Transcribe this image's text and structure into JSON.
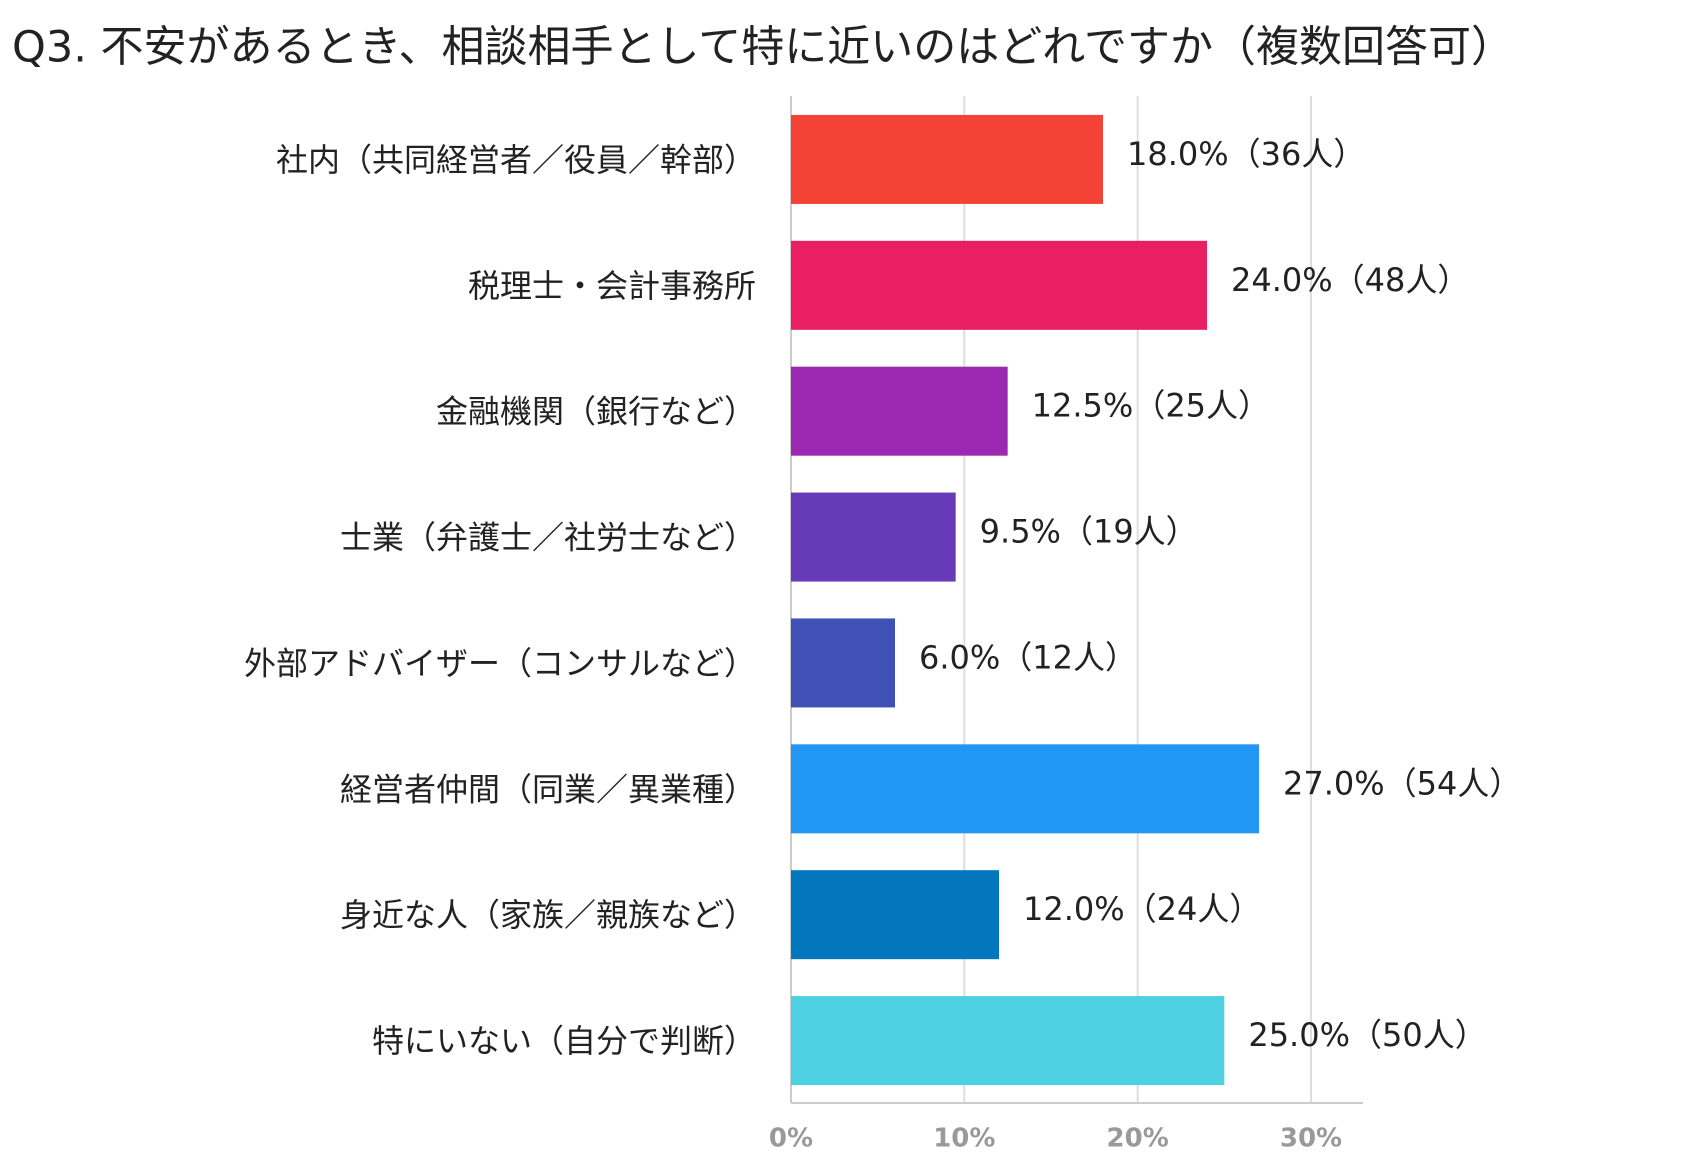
{
  "chart_data": {
    "type": "bar",
    "orientation": "horizontal",
    "title": "Q3. 不安があるとき、相談相手として特に近いのはどれですか（複数回答可）",
    "categories": [
      "社内（共同経営者／役員／幹部）",
      "税理士・会計事務所",
      "金融機関（銀行など）",
      "士業（弁護士／社労士など）",
      "外部アドバイザー（コンサルなど）",
      "経営者仲間（同業／異業種）",
      "身近な人（家族／親族など）",
      "特にいない（自分で判断）"
    ],
    "values": [
      18,
      24,
      12.5,
      9.5,
      6,
      27,
      12,
      25
    ],
    "value_labels": [
      "18.0%（36人）",
      "24.0%（48人）",
      "12.5%（25人）",
      "9.5%（19人）",
      "6.0%（12人）",
      "27.0%（54人）",
      "12.0%（24人）",
      "25.0%（50人）"
    ],
    "colors": [
      "#f44336",
      "#e91e63",
      "#9c27b0",
      "#673ab7",
      "#3f51b5",
      "#2196f3",
      "#0277bd",
      "#4dd0e1"
    ],
    "xlim": [
      0,
      33
    ],
    "xticks": [
      {
        "value": 0,
        "label": "0%"
      },
      {
        "value": 10,
        "label": "10%"
      },
      {
        "value": 20,
        "label": "20%"
      },
      {
        "value": 30,
        "label": "30%"
      }
    ],
    "grid": true
  }
}
